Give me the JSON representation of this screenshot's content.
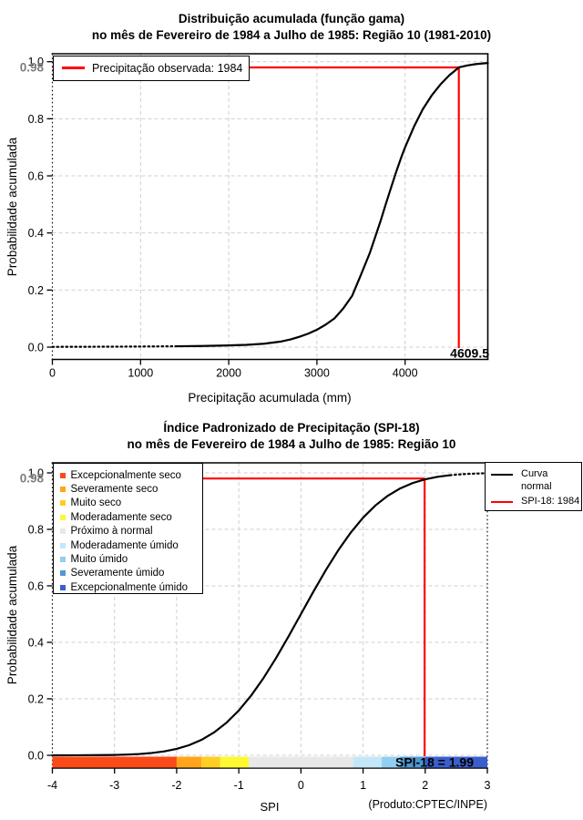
{
  "page": {
    "background": "#ffffff"
  },
  "chart_data": [
    {
      "type": "line",
      "id": "gamma-cdf",
      "title": "Distribuição acumulada (função gama)",
      "subtitle": "no mês de Fevereiro de 1984 a Julho de 1985: Região 10 (1981-2010)",
      "xlabel": "Precipitação acumulada (mm)",
      "ylabel": "Probabilidade acumulada",
      "xlim": [
        0,
        4938
      ],
      "ylim": [
        0,
        1
      ],
      "xticks": [
        0,
        1000,
        2000,
        3000,
        4000
      ],
      "yticks": [
        "0.0",
        "0.2",
        "0.4",
        "0.6",
        "0.8",
        "1.0"
      ],
      "grid": true,
      "legend_position": "top-left",
      "legend": [
        {
          "label": "Precipitação observada: 1984",
          "color": "#FF0000"
        }
      ],
      "highlight": {
        "y": 0.98,
        "y_label": "0.98",
        "y_label_color": "#7d7d7d",
        "x": 4609.5,
        "x_label": "4609.5",
        "color": "#FF0000"
      },
      "series": [
        {
          "color": "#000000",
          "points": [
            [
              0,
              0.001
            ],
            [
              400,
              0.0013
            ],
            [
              800,
              0.0018
            ],
            [
              1100,
              0.0024
            ],
            [
              1400,
              0.003
            ],
            [
              1700,
              0.004
            ],
            [
              2000,
              0.006
            ],
            [
              2200,
              0.008
            ],
            [
              2400,
              0.012
            ],
            [
              2600,
              0.02
            ],
            [
              2700,
              0.027
            ],
            [
              2800,
              0.036
            ],
            [
              2900,
              0.047
            ],
            [
              3000,
              0.061
            ],
            [
              3100,
              0.079
            ],
            [
              3200,
              0.101
            ],
            [
              3300,
              0.136
            ],
            [
              3400,
              0.18
            ],
            [
              3500,
              0.254
            ],
            [
              3600,
              0.33
            ],
            [
              3660,
              0.385
            ],
            [
              3720,
              0.44
            ],
            [
              3780,
              0.5
            ],
            [
              3840,
              0.558
            ],
            [
              3900,
              0.615
            ],
            [
              3960,
              0.668
            ],
            [
              4000,
              0.7
            ],
            [
              4100,
              0.772
            ],
            [
              4200,
              0.833
            ],
            [
              4300,
              0.881
            ],
            [
              4400,
              0.92
            ],
            [
              4500,
              0.952
            ],
            [
              4609.5,
              0.98
            ],
            [
              4700,
              0.9865
            ],
            [
              4800,
              0.9915
            ],
            [
              4938,
              0.9955
            ]
          ]
        }
      ]
    },
    {
      "type": "line",
      "id": "spi-18",
      "title": "Índice Padronizado de Precipitação (SPI-18)",
      "subtitle": "no mês de Fevereiro de 1984 a Julho de 1985: Região 10",
      "xlabel": "SPI",
      "ylabel": "Probabilidade acumulada",
      "credit": "(Produto:CPTEC/INPE)",
      "xlim": [
        -4,
        3
      ],
      "ylim": [
        0,
        1
      ],
      "xticks": [
        -4,
        -3,
        -2,
        -1,
        0,
        1,
        2,
        3
      ],
      "yticks": [
        "0.0",
        "0.2",
        "0.4",
        "0.6",
        "0.8",
        "1.0"
      ],
      "grid": true,
      "legend_position": "right",
      "legend": [
        {
          "label": "Curva normal",
          "display_lines": [
            "Curva",
            "normal"
          ],
          "color": "#000000"
        },
        {
          "label": "SPI-18: 1984",
          "display_lines": [
            "SPI-18: 1984"
          ],
          "color": "#FF0000"
        }
      ],
      "categories": [
        {
          "label": "Excepcionalmente seco",
          "color": "#FB4A17",
          "from": -4,
          "to": -2
        },
        {
          "label": "Severamente seco",
          "color": "#FFA41B",
          "from": -2,
          "to": -1.6
        },
        {
          "label": "Muito seco",
          "color": "#FFCE24",
          "from": -1.6,
          "to": -1.3
        },
        {
          "label": "Moderadamente seco",
          "color": "#FDF832",
          "from": -1.3,
          "to": -0.84
        },
        {
          "label": "Próximo à normal",
          "color": "#E8E8E8",
          "from": -0.84,
          "to": 0.84
        },
        {
          "label": "Moderadamente úmido",
          "color": "#C3E7F9",
          "from": 0.84,
          "to": 1.3
        },
        {
          "label": "Muito úmido",
          "color": "#92CEEF",
          "from": 1.3,
          "to": 1.6
        },
        {
          "label": "Severamente úmido",
          "color": "#4F98D2",
          "from": 1.6,
          "to": 2
        },
        {
          "label": "Excepcionalmente úmido",
          "color": "#3A5FCD",
          "from": 2,
          "to": 3
        }
      ],
      "highlight": {
        "y": 0.98,
        "y_label": "0.98",
        "y_label_color": "#7d7d7d",
        "x": 1.99,
        "x_label": "SPI-18 = 1.99",
        "color": "#FF0000"
      },
      "series": [
        {
          "name": "Curva normal",
          "color": "#000000",
          "points": [
            [
              -4,
              0.0001
            ],
            [
              -3.6,
              0.0002
            ],
            [
              -3.2,
              0.0007
            ],
            [
              -3,
              0.0013
            ],
            [
              -2.8,
              0.0026
            ],
            [
              -2.6,
              0.0047
            ],
            [
              -2.4,
              0.0082
            ],
            [
              -2.2,
              0.0139
            ],
            [
              -2,
              0.0228
            ],
            [
              -1.8,
              0.0359
            ],
            [
              -1.6,
              0.0548
            ],
            [
              -1.4,
              0.0808
            ],
            [
              -1.2,
              0.1151
            ],
            [
              -1,
              0.1587
            ],
            [
              -0.8,
              0.2119
            ],
            [
              -0.6,
              0.2743
            ],
            [
              -0.4,
              0.3446
            ],
            [
              -0.2,
              0.4207
            ],
            [
              0,
              0.5
            ],
            [
              0.2,
              0.5793
            ],
            [
              0.4,
              0.6554
            ],
            [
              0.6,
              0.7257
            ],
            [
              0.8,
              0.7881
            ],
            [
              1,
              0.8413
            ],
            [
              1.2,
              0.8849
            ],
            [
              1.4,
              0.9192
            ],
            [
              1.6,
              0.9452
            ],
            [
              1.8,
              0.9641
            ],
            [
              2,
              0.9772
            ],
            [
              2.2,
              0.9861
            ],
            [
              2.4,
              0.9918
            ],
            [
              2.6,
              0.9953
            ],
            [
              2.8,
              0.9974
            ],
            [
              3,
              0.9987
            ]
          ]
        }
      ]
    }
  ]
}
